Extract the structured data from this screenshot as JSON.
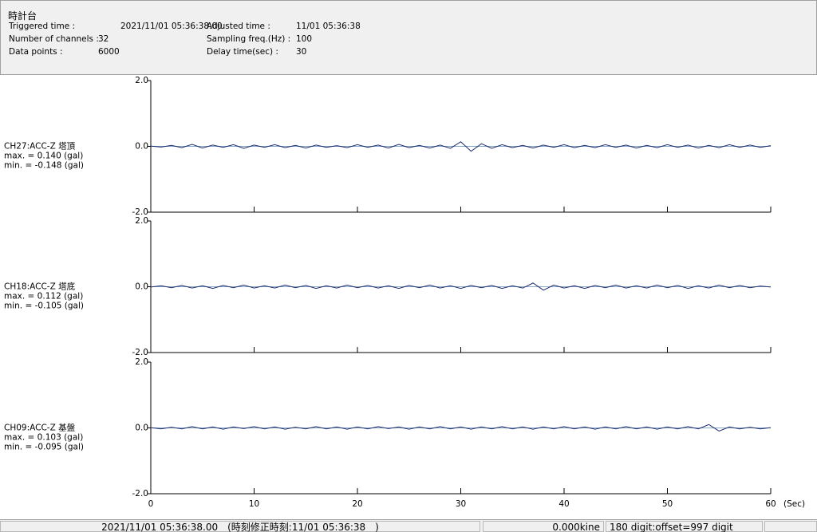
{
  "header": {
    "title": "時計台",
    "fields": [
      {
        "label": "Triggered time :",
        "value": "2021/11/01 05:36:38.00"
      },
      {
        "label": "Number of channels :",
        "value": "32"
      },
      {
        "label": "Data points :",
        "value": "6000"
      },
      {
        "label": "Adjusted time :",
        "value": "11/01 05:36:38"
      },
      {
        "label": "Sampling freq.(Hz) :",
        "value": "100"
      },
      {
        "label": "Delay time(sec) :",
        "value": "30"
      }
    ]
  },
  "chart_data": [
    {
      "type": "line",
      "channel": "CH27:ACC-Z 塔頂",
      "max_label": "max. = 0.140 (gal)",
      "min_label": "min. = -0.148 (gal)",
      "color": "#1a2a6c",
      "xlim": [
        0,
        60
      ],
      "ylim": [
        -2,
        2
      ],
      "yticks": [
        {
          "value": 2,
          "label": "2.0"
        },
        {
          "value": 0,
          "label": "0.0"
        },
        {
          "value": -2,
          "label": "-2.0"
        }
      ],
      "xticks": [
        0,
        10,
        20,
        30,
        40,
        50,
        60
      ],
      "x": [
        0,
        1,
        2,
        3,
        4,
        5,
        6,
        7,
        8,
        9,
        10,
        11,
        12,
        13,
        14,
        15,
        16,
        17,
        18,
        19,
        20,
        21,
        22,
        23,
        24,
        25,
        26,
        27,
        28,
        29,
        30,
        31,
        32,
        33,
        34,
        35,
        36,
        37,
        38,
        39,
        40,
        41,
        42,
        43,
        44,
        45,
        46,
        47,
        48,
        49,
        50,
        51,
        52,
        53,
        54,
        55,
        56,
        57,
        58,
        59,
        60
      ],
      "values": [
        0.01,
        -0.02,
        0.03,
        -0.04,
        0.06,
        -0.05,
        0.04,
        -0.03,
        0.05,
        -0.06,
        0.04,
        -0.03,
        0.05,
        -0.04,
        0.03,
        -0.05,
        0.04,
        -0.03,
        0.02,
        -0.04,
        0.05,
        -0.03,
        0.04,
        -0.05,
        0.06,
        -0.04,
        0.03,
        -0.05,
        0.04,
        -0.06,
        0.14,
        -0.148,
        0.08,
        -0.06,
        0.05,
        -0.04,
        0.03,
        -0.05,
        0.04,
        -0.03,
        0.05,
        -0.04,
        0.03,
        -0.04,
        0.05,
        -0.03,
        0.04,
        -0.05,
        0.03,
        -0.04,
        0.05,
        -0.03,
        0.04,
        -0.05,
        0.03,
        -0.04,
        0.05,
        -0.03,
        0.04,
        -0.03,
        0.02
      ]
    },
    {
      "type": "line",
      "channel": "CH18:ACC-Z 塔底",
      "max_label": "max. = 0.112 (gal)",
      "min_label": "min. = -0.105 (gal)",
      "color": "#1a2a6c",
      "xlim": [
        0,
        60
      ],
      "ylim": [
        -2,
        2
      ],
      "yticks": [
        {
          "value": 2,
          "label": "2.0"
        },
        {
          "value": 0,
          "label": "0.0"
        },
        {
          "value": -2,
          "label": "-2.0"
        }
      ],
      "xticks": [
        0,
        10,
        20,
        30,
        40,
        50,
        60
      ],
      "x": [
        0,
        1,
        2,
        3,
        4,
        5,
        6,
        7,
        8,
        9,
        10,
        11,
        12,
        13,
        14,
        15,
        16,
        17,
        18,
        19,
        20,
        21,
        22,
        23,
        24,
        25,
        26,
        27,
        28,
        29,
        30,
        31,
        32,
        33,
        34,
        35,
        36,
        37,
        38,
        39,
        40,
        41,
        42,
        43,
        44,
        45,
        46,
        47,
        48,
        49,
        50,
        51,
        52,
        53,
        54,
        55,
        56,
        57,
        58,
        59,
        60
      ],
      "values": [
        -0.01,
        0.03,
        -0.03,
        0.04,
        -0.04,
        0.03,
        -0.05,
        0.04,
        -0.03,
        0.05,
        -0.04,
        0.03,
        -0.04,
        0.05,
        -0.03,
        0.04,
        -0.05,
        0.03,
        -0.04,
        0.05,
        -0.03,
        0.04,
        -0.04,
        0.03,
        -0.05,
        0.04,
        -0.03,
        0.05,
        -0.04,
        0.03,
        -0.05,
        0.04,
        -0.03,
        0.04,
        -0.05,
        0.03,
        -0.04,
        0.112,
        -0.105,
        0.05,
        -0.04,
        0.03,
        -0.05,
        0.04,
        -0.03,
        0.05,
        -0.04,
        0.03,
        -0.04,
        0.05,
        -0.03,
        0.04,
        -0.05,
        0.03,
        -0.04,
        0.05,
        -0.03,
        0.04,
        -0.03,
        0.02,
        -0.01
      ]
    },
    {
      "type": "line",
      "channel": "CH09:ACC-Z 基盤",
      "max_label": "max. = 0.103 (gal)",
      "min_label": "min. = -0.095 (gal)",
      "color": "#1a2a6c",
      "xlim": [
        0,
        60
      ],
      "ylim": [
        -2,
        2
      ],
      "yticks": [
        {
          "value": 2,
          "label": "2.0"
        },
        {
          "value": 0,
          "label": "0.0"
        },
        {
          "value": -2,
          "label": "-2.0"
        }
      ],
      "xticks": [
        0,
        10,
        20,
        30,
        40,
        50,
        60
      ],
      "xlabel": "(Sec)",
      "x": [
        0,
        1,
        2,
        3,
        4,
        5,
        6,
        7,
        8,
        9,
        10,
        11,
        12,
        13,
        14,
        15,
        16,
        17,
        18,
        19,
        20,
        21,
        22,
        23,
        24,
        25,
        26,
        27,
        28,
        29,
        30,
        31,
        32,
        33,
        34,
        35,
        36,
        37,
        38,
        39,
        40,
        41,
        42,
        43,
        44,
        45,
        46,
        47,
        48,
        49,
        50,
        51,
        52,
        53,
        54,
        55,
        56,
        57,
        58,
        59,
        60
      ],
      "values": [
        0.01,
        -0.03,
        0.02,
        -0.03,
        0.04,
        -0.03,
        0.03,
        -0.04,
        0.03,
        -0.02,
        0.04,
        -0.03,
        0.03,
        -0.04,
        0.02,
        -0.03,
        0.04,
        -0.03,
        0.03,
        -0.04,
        0.03,
        -0.03,
        0.04,
        -0.02,
        0.03,
        -0.04,
        0.03,
        -0.03,
        0.04,
        -0.03,
        0.03,
        -0.04,
        0.03,
        -0.03,
        0.04,
        -0.03,
        0.03,
        -0.04,
        0.03,
        -0.03,
        0.04,
        -0.03,
        0.03,
        -0.04,
        0.03,
        -0.03,
        0.04,
        -0.03,
        0.03,
        -0.04,
        0.03,
        -0.03,
        0.04,
        -0.03,
        0.103,
        -0.095,
        0.03,
        -0.03,
        0.02,
        -0.03,
        0.01
      ]
    }
  ],
  "status": [
    "2021/11/01 05:36:38.00　(時刻修正時刻:11/01 05:36:38　)",
    "0.000kine",
    "180 digit:offset=997 digit"
  ]
}
